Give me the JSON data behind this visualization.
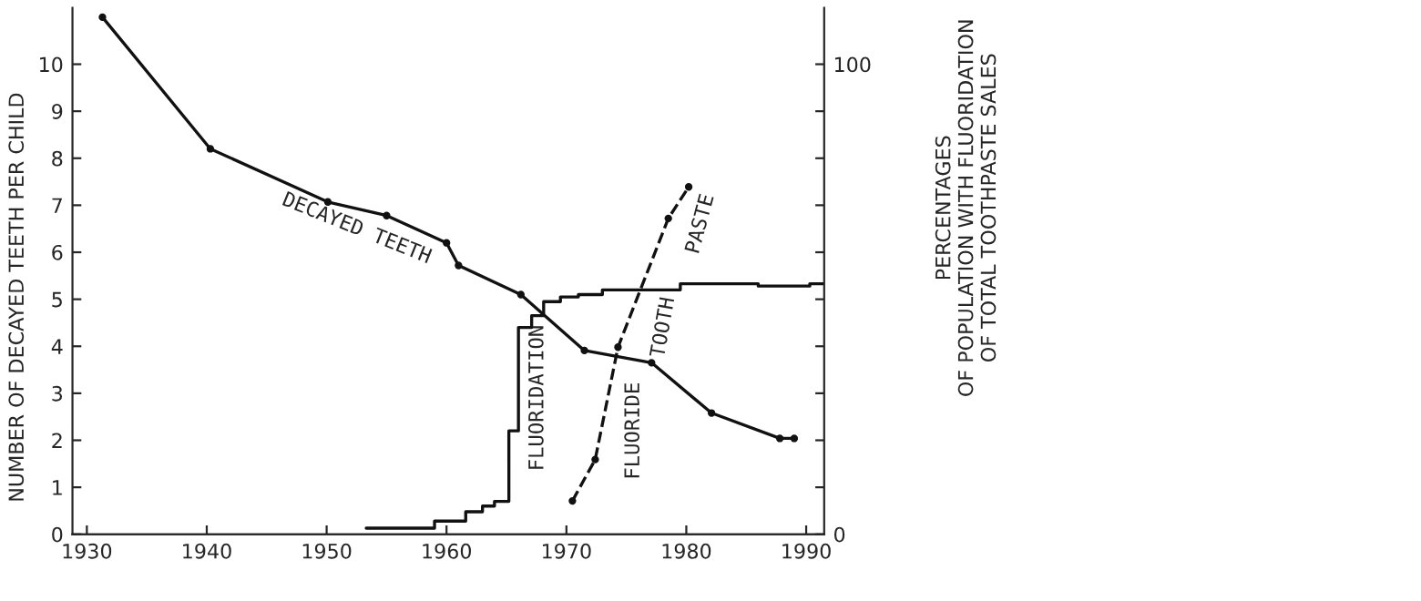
{
  "chart_data": {
    "type": "line",
    "xlabel": null,
    "ylabel": "NUMBER OF DECAYED TEETH PER CHILD",
    "y2label": "PERCENTAGES\nOF POPULATION WITH FLUORIDATION\nOF TOTAL TOOTHPASTE SALES",
    "xlim": [
      1928.8,
      1991.5
    ],
    "xticks": [
      1930,
      1940,
      1950,
      1960,
      1970,
      1980,
      1990
    ],
    "ylim": [
      0,
      11.2
    ],
    "yticks": [
      0,
      1,
      2,
      3,
      4,
      5,
      6,
      7,
      8,
      9,
      10
    ],
    "y2lim": [
      0,
      112
    ],
    "y2ticks": [
      0,
      {
        "value": 10,
        "label": null
      },
      {
        "value": 20,
        "label": null
      },
      {
        "value": 30,
        "label": null
      },
      {
        "value": 40,
        "label": null
      },
      {
        "value": 50,
        "label": null
      },
      {
        "value": 60,
        "label": null
      },
      {
        "value": 70,
        "label": null
      },
      {
        "value": 80,
        "label": null
      },
      {
        "value": 90,
        "label": null
      },
      100
    ],
    "grid": false,
    "legend": false,
    "series": [
      {
        "name": "DECAYED TEETH",
        "color": "#111111",
        "marker": "circle",
        "line_style": "solid",
        "x": [
          1931.3,
          1940.3,
          1950.1,
          1955.0,
          1960.0,
          1961.0,
          1966.2,
          1971.5,
          1977.1,
          1982.1,
          1987.8,
          1989.0
        ],
        "values": [
          11.0,
          8.2,
          7.07,
          6.78,
          6.2,
          5.72,
          5.1,
          3.91,
          3.65,
          2.58,
          2.04,
          2.04
        ]
      },
      {
        "name": "FLUORIDATION",
        "type": "step",
        "axis": "y2",
        "color": "#111111",
        "marker": "none",
        "line_style": "solid",
        "x": [
          1953.3,
          1959.0,
          1961.6,
          1963.0,
          1964.0,
          1965.2,
          1966.0,
          1967.1,
          1968.1,
          1969.5,
          1971.0,
          1973.0,
          1979.5,
          1986.0,
          1990.3,
          1991.5
        ],
        "values": [
          1.3,
          2.8,
          4.8,
          6,
          7,
          22,
          44,
          46.5,
          49.5,
          50.5,
          51,
          52,
          53.3,
          52.8,
          53.3,
          53.3
        ]
      },
      {
        "name": "FLUORIDE TOOTH PASTE",
        "axis": "y2",
        "color": "#111111",
        "marker": "circle",
        "line_style": "dashed",
        "x": [
          1970.5,
          1972.4,
          1974.3,
          1978.5,
          1980.2
        ],
        "values": [
          7.1,
          15.9,
          39.8,
          67.2,
          73.9
        ]
      }
    ]
  }
}
